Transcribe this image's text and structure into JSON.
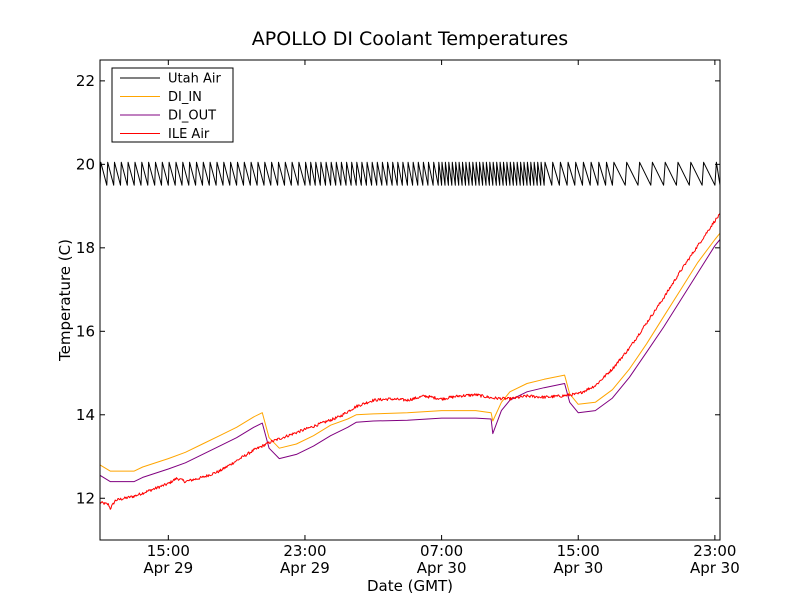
{
  "chart_data": {
    "type": "line",
    "title": "APOLLO DI Coolant Temperatures",
    "xlabel": "Date (GMT)",
    "ylabel": "Temperature (C)",
    "xlim": [
      -4.0,
      32.3
    ],
    "x_units": "hours since Apr 29 15:00 GMT",
    "ylim": [
      11.0,
      22.5
    ],
    "yticks": [
      12,
      14,
      16,
      18,
      20,
      22
    ],
    "ytick_labels": [
      "12",
      "14",
      "16",
      "18",
      "20",
      "22"
    ],
    "xticks": [
      {
        "x": 0,
        "time": "15:00",
        "date": "Apr 29"
      },
      {
        "x": 8,
        "time": "23:00",
        "date": "Apr 29"
      },
      {
        "x": 16,
        "time": "07:00",
        "date": "Apr 30"
      },
      {
        "x": 24,
        "time": "15:00",
        "date": "Apr 30"
      },
      {
        "x": 32,
        "time": "23:00",
        "date": "Apr 30"
      }
    ],
    "grid": false,
    "legend": {
      "position": "top-left"
    },
    "series": [
      {
        "name": "Utah Air",
        "color": "#000000",
        "style": "oscillating",
        "base": 19.5,
        "peak": 20.05,
        "points": [
          [
            -4.0,
            19.85
          ],
          [
            4.0,
            19.75
          ],
          [
            10.0,
            19.8
          ],
          [
            16.0,
            19.8
          ],
          [
            22.0,
            19.8
          ],
          [
            26.0,
            19.8
          ],
          [
            30.0,
            19.75
          ],
          [
            32.0,
            19.8
          ]
        ],
        "segments": [
          {
            "x0": -4.0,
            "x1": 8.0,
            "period": 0.4
          },
          {
            "x0": 8.0,
            "x1": 16.0,
            "period": 0.3
          },
          {
            "x0": 16.0,
            "x1": 22.0,
            "period": 0.2
          },
          {
            "x0": 22.0,
            "x1": 26.0,
            "period": 0.45
          },
          {
            "x0": 26.0,
            "x1": 32.3,
            "period": 0.75
          }
        ]
      },
      {
        "name": "DI_IN",
        "color": "#ffa500",
        "points": [
          [
            -4.0,
            12.8
          ],
          [
            -3.4,
            12.65
          ],
          [
            -2.0,
            12.65
          ],
          [
            -1.5,
            12.75
          ],
          [
            0.0,
            12.95
          ],
          [
            1.0,
            13.1
          ],
          [
            2.0,
            13.3
          ],
          [
            3.0,
            13.5
          ],
          [
            4.0,
            13.7
          ],
          [
            5.0,
            13.95
          ],
          [
            5.5,
            14.05
          ],
          [
            5.9,
            13.45
          ],
          [
            6.5,
            13.2
          ],
          [
            7.5,
            13.3
          ],
          [
            8.5,
            13.5
          ],
          [
            9.5,
            13.75
          ],
          [
            10.5,
            13.9
          ],
          [
            11.0,
            14.0
          ],
          [
            12.0,
            14.02
          ],
          [
            14.0,
            14.05
          ],
          [
            16.0,
            14.1
          ],
          [
            18.0,
            14.1
          ],
          [
            18.9,
            14.05
          ],
          [
            19.0,
            13.85
          ],
          [
            19.5,
            14.3
          ],
          [
            20.0,
            14.55
          ],
          [
            21.0,
            14.75
          ],
          [
            22.0,
            14.85
          ],
          [
            23.2,
            14.95
          ],
          [
            23.5,
            14.5
          ],
          [
            24.0,
            14.25
          ],
          [
            25.0,
            14.3
          ],
          [
            26.0,
            14.6
          ],
          [
            27.0,
            15.1
          ],
          [
            28.0,
            15.7
          ],
          [
            29.0,
            16.35
          ],
          [
            30.0,
            17.0
          ],
          [
            31.0,
            17.65
          ],
          [
            32.0,
            18.2
          ],
          [
            32.3,
            18.35
          ]
        ]
      },
      {
        "name": "DI_OUT",
        "color": "#800080",
        "points": [
          [
            -4.0,
            12.55
          ],
          [
            -3.4,
            12.4
          ],
          [
            -2.0,
            12.4
          ],
          [
            -1.5,
            12.5
          ],
          [
            0.0,
            12.7
          ],
          [
            1.0,
            12.85
          ],
          [
            2.0,
            13.05
          ],
          [
            3.0,
            13.25
          ],
          [
            4.0,
            13.45
          ],
          [
            5.0,
            13.7
          ],
          [
            5.5,
            13.8
          ],
          [
            5.9,
            13.2
          ],
          [
            6.5,
            12.95
          ],
          [
            7.5,
            13.05
          ],
          [
            8.5,
            13.25
          ],
          [
            9.5,
            13.5
          ],
          [
            10.5,
            13.7
          ],
          [
            11.0,
            13.82
          ],
          [
            12.0,
            13.85
          ],
          [
            14.0,
            13.87
          ],
          [
            16.0,
            13.92
          ],
          [
            18.0,
            13.92
          ],
          [
            18.9,
            13.9
          ],
          [
            19.0,
            13.55
          ],
          [
            19.5,
            14.1
          ],
          [
            20.0,
            14.35
          ],
          [
            21.0,
            14.55
          ],
          [
            22.0,
            14.65
          ],
          [
            23.2,
            14.75
          ],
          [
            23.5,
            14.3
          ],
          [
            24.0,
            14.05
          ],
          [
            25.0,
            14.1
          ],
          [
            26.0,
            14.4
          ],
          [
            27.0,
            14.9
          ],
          [
            28.0,
            15.5
          ],
          [
            29.0,
            16.1
          ],
          [
            30.0,
            16.75
          ],
          [
            31.0,
            17.4
          ],
          [
            32.0,
            18.05
          ],
          [
            32.3,
            18.2
          ]
        ]
      },
      {
        "name": "ILE Air",
        "color": "#ff0000",
        "noise": 0.035,
        "points": [
          [
            -4.0,
            11.9
          ],
          [
            -3.5,
            11.85
          ],
          [
            -3.4,
            11.75
          ],
          [
            -3.1,
            11.95
          ],
          [
            -2.0,
            12.05
          ],
          [
            -1.0,
            12.2
          ],
          [
            0.0,
            12.35
          ],
          [
            0.5,
            12.48
          ],
          [
            1.0,
            12.4
          ],
          [
            2.0,
            12.5
          ],
          [
            3.0,
            12.65
          ],
          [
            4.0,
            12.9
          ],
          [
            5.0,
            13.15
          ],
          [
            6.0,
            13.35
          ],
          [
            7.0,
            13.5
          ],
          [
            8.0,
            13.65
          ],
          [
            9.0,
            13.8
          ],
          [
            10.0,
            13.95
          ],
          [
            10.6,
            14.1
          ],
          [
            11.0,
            14.2
          ],
          [
            12.0,
            14.35
          ],
          [
            13.0,
            14.38
          ],
          [
            14.0,
            14.35
          ],
          [
            15.0,
            14.45
          ],
          [
            16.0,
            14.38
          ],
          [
            17.0,
            14.45
          ],
          [
            18.0,
            14.48
          ],
          [
            19.0,
            14.4
          ],
          [
            20.0,
            14.38
          ],
          [
            21.0,
            14.45
          ],
          [
            22.0,
            14.42
          ],
          [
            23.0,
            14.45
          ],
          [
            24.0,
            14.5
          ],
          [
            25.0,
            14.7
          ],
          [
            26.0,
            15.1
          ],
          [
            27.0,
            15.6
          ],
          [
            28.0,
            16.2
          ],
          [
            29.0,
            16.8
          ],
          [
            30.0,
            17.45
          ],
          [
            31.0,
            18.05
          ],
          [
            32.0,
            18.65
          ],
          [
            32.3,
            18.8
          ]
        ]
      }
    ]
  }
}
